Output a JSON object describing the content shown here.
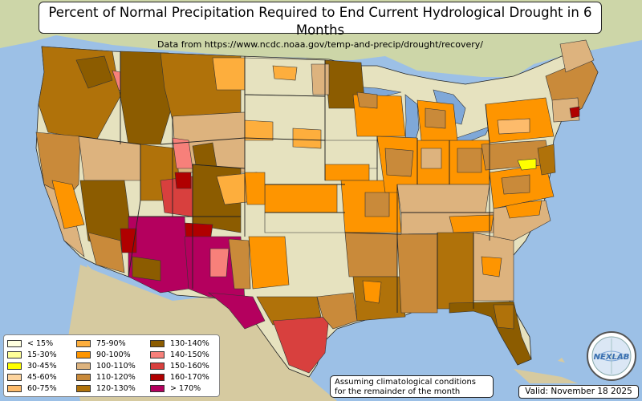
{
  "header": {
    "title": "Percent of Normal Precipitation Required to End Current Hydrological Drought in 6 Months",
    "subtitle": "Data from https://www.ncdc.noaa.gov/temp-and-precip/drought/recovery/"
  },
  "legend": {
    "items": [
      {
        "label": "< 15%",
        "color": "#ffffe0"
      },
      {
        "label": "15-30%",
        "color": "#ffff99"
      },
      {
        "label": "30-45%",
        "color": "#ffff00"
      },
      {
        "label": "45-60%",
        "color": "#fdd49e"
      },
      {
        "label": "60-75%",
        "color": "#fdbb6b"
      },
      {
        "label": "75-90%",
        "color": "#fdae3d"
      },
      {
        "label": "90-100%",
        "color": "#fe9500"
      },
      {
        "label": "100-110%",
        "color": "#ddb37e"
      },
      {
        "label": "110-120%",
        "color": "#c98a3a"
      },
      {
        "label": "120-130%",
        "color": "#b0720a"
      },
      {
        "label": "130-140%",
        "color": "#8c5c00"
      },
      {
        "label": "140-150%",
        "color": "#f7807a"
      },
      {
        "label": "150-160%",
        "color": "#d8403e"
      },
      {
        "label": "160-170%",
        "color": "#b00000"
      },
      {
        "label": "> 170%",
        "color": "#b4005e"
      }
    ]
  },
  "note": {
    "line1": "Assuming climatological conditions",
    "line2": "for the remainder of the month"
  },
  "valid": "Valid: November 18 2025",
  "logo": {
    "text": "NEXLAB"
  },
  "colors": {
    "ocean": "#9cc0e6",
    "land": "#e6e2bf",
    "land_north": "#d9dcae",
    "forest": "#b8c98f",
    "great_lakes": "#7fa8d8"
  }
}
